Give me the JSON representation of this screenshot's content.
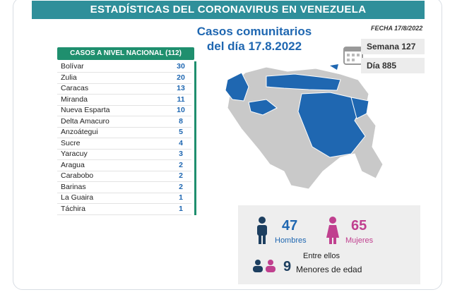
{
  "header": {
    "title": "ESTADÍSTICAS DEL CORONAVIRUS EN VENEZUELA",
    "subtitle_line1": "Casos comunitarios",
    "subtitle_line2": "del día 17.8.2022",
    "date": "FECHA 17/8/2022",
    "week": "Semana 127",
    "day": "Día 885"
  },
  "table": {
    "title": "CASOS A NIVEL NACIONAL (112)",
    "rows": [
      [
        "Bolívar",
        30
      ],
      [
        "Zulia",
        20
      ],
      [
        "Caracas",
        13
      ],
      [
        "Miranda",
        11
      ],
      [
        "Nueva Esparta",
        10
      ],
      [
        "Delta Amacuro",
        8
      ],
      [
        "Anzoátegui",
        5
      ],
      [
        "Sucre",
        4
      ],
      [
        "Yaracuy",
        3
      ],
      [
        "Aragua",
        2
      ],
      [
        "Carabobo",
        2
      ],
      [
        "Barinas",
        2
      ],
      [
        "La Guaira",
        1
      ],
      [
        "Táchira",
        1
      ]
    ]
  },
  "summary": {
    "men": 47,
    "men_label": "Hombres",
    "women": 65,
    "women_label": "Mujeres",
    "among_label": "Entre ellos",
    "minors": 9,
    "minors_label": "Menores de edad"
  }
}
